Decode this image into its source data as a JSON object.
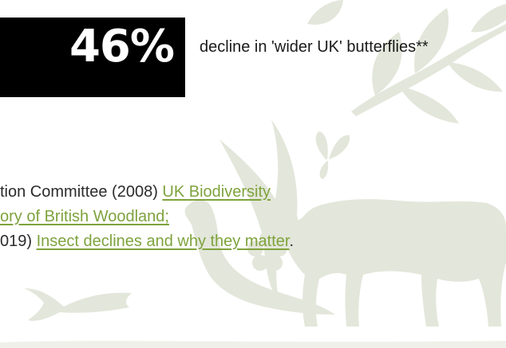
{
  "stat": {
    "value": "46%",
    "description": "decline in 'wider UK' butterflies**"
  },
  "references": {
    "line1_text": "tion Committee (2008) ",
    "line1_link": "UK Biodiversity ",
    "line2_link": "ory of British Woodland;",
    "line3_text": "019) ",
    "line3_link": "Insect declines and why they matter",
    "line3_end": "."
  },
  "colors": {
    "background": "#ffffff",
    "stat_block": "#000000",
    "link": "#7ea33d",
    "illustration": "#e3e6da"
  },
  "icons": [
    "branch-leaves-icon",
    "swallow-bird-icon",
    "butterfly-icon",
    "fish-icon",
    "otter-icon",
    "flower-icon",
    "cow-icon"
  ]
}
